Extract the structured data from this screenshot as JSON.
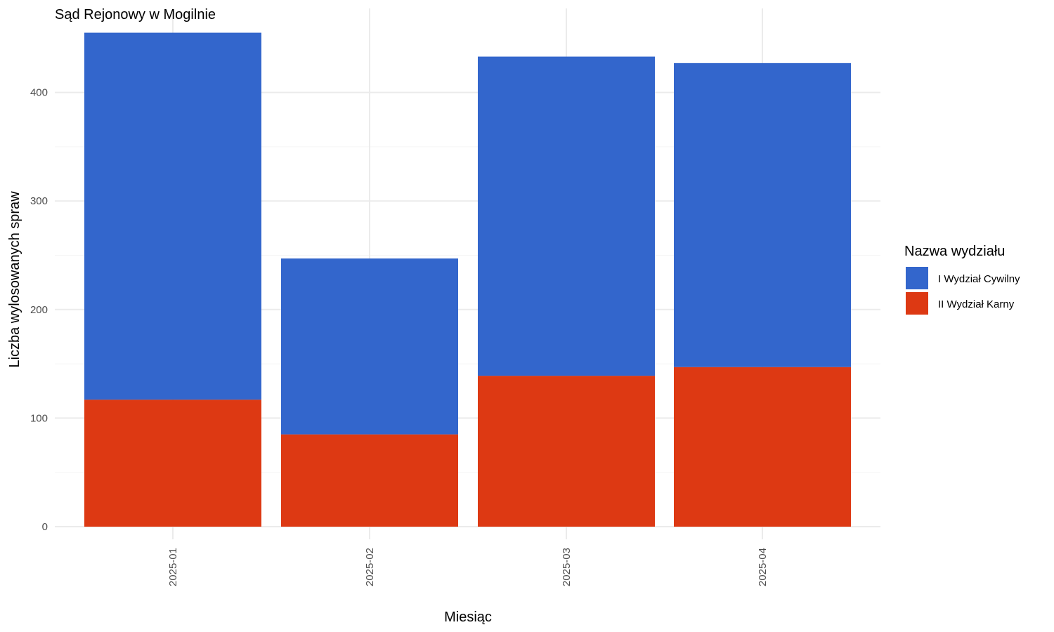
{
  "chart_data": {
    "type": "bar",
    "stacked": true,
    "title": "Sąd Rejonowy w Mogilnie",
    "xlabel": "Miesiąc",
    "ylabel": "Liczba wylosowanych spraw",
    "categories": [
      "2025-01",
      "2025-02",
      "2025-03",
      "2025-04"
    ],
    "series": [
      {
        "name": "II Wydział Karny",
        "color": "#DD3913",
        "values": [
          117,
          85,
          139,
          147
        ]
      },
      {
        "name": "I Wydział Cywilny",
        "color": "#3366CC",
        "values": [
          338,
          162,
          294,
          280
        ]
      }
    ],
    "ylim": [
      0,
      460
    ],
    "yticks": [
      0,
      100,
      200,
      300,
      400
    ],
    "grid": true,
    "legend": {
      "title": "Nazwa wydziału",
      "placement": "right",
      "items": [
        {
          "label": "I Wydział Cywilny",
          "color": "#3366CC"
        },
        {
          "label": "II Wydział Karny",
          "color": "#DD3913"
        }
      ]
    }
  }
}
